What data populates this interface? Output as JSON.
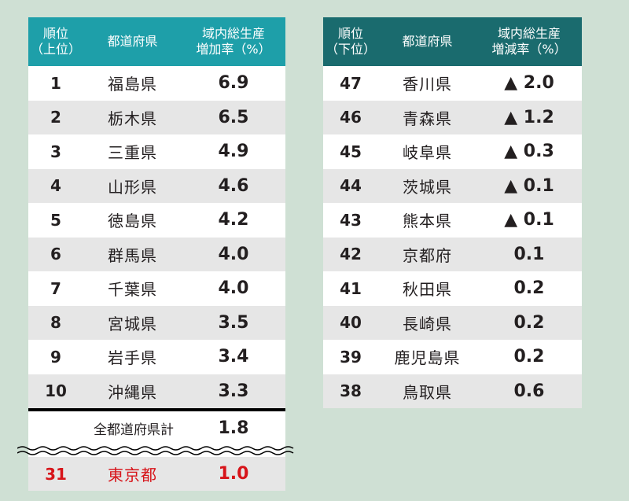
{
  "left": {
    "headers": [
      "順位\n（上位）",
      "都道府県",
      "域内総生産\n増加率（%）"
    ],
    "rows": [
      {
        "rank": "1",
        "pref": "福島県",
        "value": "6.9"
      },
      {
        "rank": "2",
        "pref": "栃木県",
        "value": "6.5"
      },
      {
        "rank": "3",
        "pref": "三重県",
        "value": "4.9"
      },
      {
        "rank": "4",
        "pref": "山形県",
        "value": "4.6"
      },
      {
        "rank": "5",
        "pref": "徳島県",
        "value": "4.2"
      },
      {
        "rank": "6",
        "pref": "群馬県",
        "value": "4.0"
      },
      {
        "rank": "7",
        "pref": "千葉県",
        "value": "4.0"
      },
      {
        "rank": "8",
        "pref": "宮城県",
        "value": "3.5"
      },
      {
        "rank": "9",
        "pref": "岩手県",
        "value": "3.4"
      },
      {
        "rank": "10",
        "pref": "沖縄県",
        "value": "3.3"
      }
    ],
    "total": {
      "label": "全都道府県計",
      "value": "1.8"
    },
    "highlight": {
      "rank": "31",
      "pref": "東京都",
      "value": "1.0"
    }
  },
  "right": {
    "headers": [
      "順位\n（下位）",
      "都道府県",
      "域内総生産\n増減率（%）"
    ],
    "rows": [
      {
        "rank": "47",
        "pref": "香川県",
        "value": "▲ 2.0"
      },
      {
        "rank": "46",
        "pref": "青森県",
        "value": "▲ 1.2"
      },
      {
        "rank": "45",
        "pref": "岐阜県",
        "value": "▲ 0.3"
      },
      {
        "rank": "44",
        "pref": "茨城県",
        "value": "▲ 0.1"
      },
      {
        "rank": "43",
        "pref": "熊本県",
        "value": "▲ 0.1"
      },
      {
        "rank": "42",
        "pref": "京都府",
        "value": "0.1"
      },
      {
        "rank": "41",
        "pref": "秋田県",
        "value": "0.2"
      },
      {
        "rank": "40",
        "pref": "長崎県",
        "value": "0.2"
      },
      {
        "rank": "39",
        "pref": "鹿児島県",
        "value": "0.2"
      },
      {
        "rank": "38",
        "pref": "鳥取県",
        "value": "0.6"
      }
    ]
  },
  "colors": {
    "background": "#cfe0d4",
    "left_header": "#1e9fa9",
    "right_header": "#1a6b6e",
    "row_alt": "#e6e6e6",
    "highlight_text": "#d7141a"
  }
}
